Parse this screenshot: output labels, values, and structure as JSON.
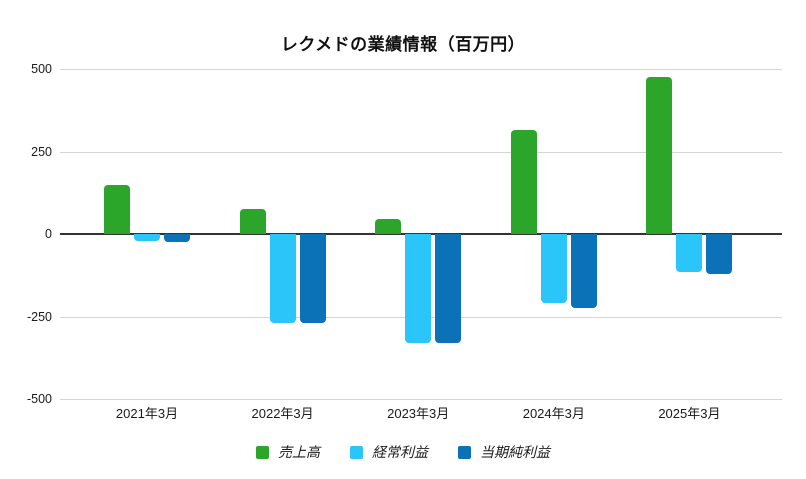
{
  "title": "レクメドの業績情報（百万円）",
  "chart_data": {
    "type": "bar",
    "title": "レクメドの業績情報（百万円）",
    "categories": [
      "2021年3月",
      "2022年3月",
      "2023年3月",
      "2024年3月",
      "2025年3月"
    ],
    "series": [
      {
        "name": "売上高",
        "color": "#2BA62B",
        "values": [
          150,
          75,
          45,
          315,
          475
        ]
      },
      {
        "name": "経常利益",
        "color": "#2BC6F9",
        "values": [
          -20,
          -270,
          -330,
          -210,
          -115
        ]
      },
      {
        "name": "当期純利益",
        "color": "#0B72B7",
        "values": [
          -25,
          -270,
          -330,
          -225,
          -120
        ]
      }
    ],
    "xlabel": "",
    "ylabel": "",
    "ylim": [
      -500,
      500
    ],
    "y_ticks": [
      500,
      250,
      0,
      -250,
      -500
    ],
    "grid": true,
    "legend_position": "bottom",
    "axis_colors": {
      "gridline": "#d4d4d4",
      "zero_line": "#333333",
      "text": "#1a1a1a"
    }
  }
}
